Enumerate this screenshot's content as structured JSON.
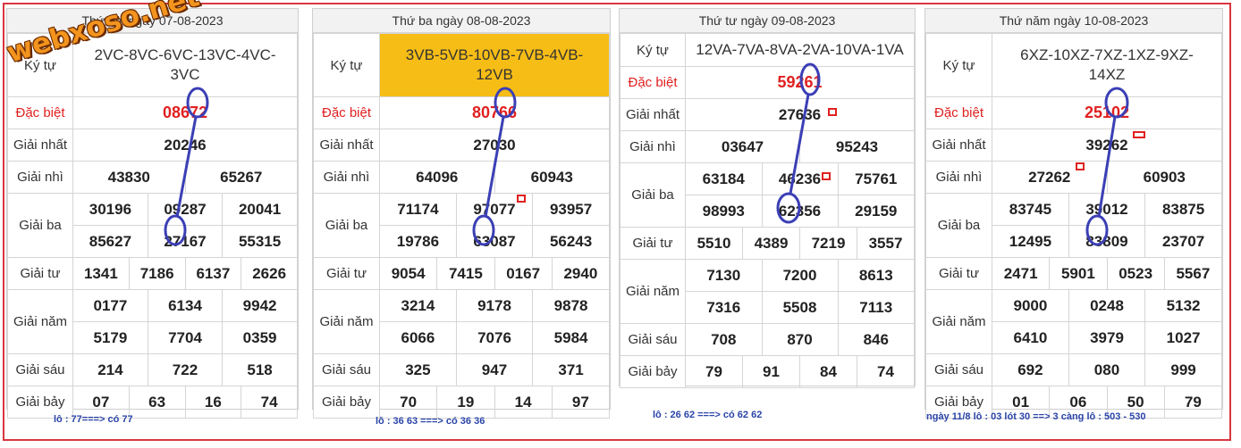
{
  "brand": "webxoso.net",
  "labels": {
    "ky_tu": "Ký tự",
    "dac_biet": "Đặc biệt",
    "nhat": "Giải nhất",
    "nhi": "Giải nhì",
    "ba": "Giải ba",
    "tu": "Giải tư",
    "nam": "Giải năm",
    "sau": "Giải sáu",
    "bay": "Giải bảy"
  },
  "colors": {
    "frame": "#d9363e",
    "special": "#e02020",
    "highlight": "#f6bd16",
    "annotation": "#2a44a8"
  },
  "panels": [
    {
      "title": "Thứ hai ngày 07-08-2023",
      "code": "2VC-8VC-6VC-13VC-4VC-3VC",
      "code_line1": "2VC-8VC-6VC-13VC-4VC-",
      "code_line2": "3VC",
      "db": "08672",
      "nhat": "20246",
      "nhi": [
        "43830",
        "65267"
      ],
      "ba": [
        "30196",
        "09287",
        "20041",
        "85627",
        "27167",
        "55315"
      ],
      "tu": [
        "1341",
        "7186",
        "6137",
        "2626"
      ],
      "nam": [
        "0177",
        "6134",
        "9942",
        "5179",
        "7704",
        "0359"
      ],
      "sau": [
        "214",
        "722",
        "518"
      ],
      "bay": [
        "07",
        "63",
        "16",
        "74"
      ],
      "note": "lô : 77===> có 77"
    },
    {
      "title": "Thứ ba ngày 08-08-2023",
      "code": "3VB-5VB-10VB-7VB-4VB-12VB",
      "code_line1": "3VB-5VB-10VB-7VB-4VB-",
      "code_line2": "12VB",
      "db": "80766",
      "nhat": "27030",
      "nhi": [
        "64096",
        "60943"
      ],
      "ba": [
        "71174",
        "97077",
        "93957",
        "19786",
        "63087",
        "56243"
      ],
      "tu": [
        "9054",
        "7415",
        "0167",
        "2940"
      ],
      "nam": [
        "3214",
        "9178",
        "9878",
        "6066",
        "7076",
        "5984"
      ],
      "sau": [
        "325",
        "947",
        "371"
      ],
      "bay": [
        "70",
        "19",
        "14",
        "97"
      ],
      "note": "lô : 36 63 ===> có 36 36"
    },
    {
      "title": "Thứ tư ngày 09-08-2023",
      "code": "12VA-7VA-8VA-2VA-10VA-1VA",
      "db": "59261",
      "nhat": "27636",
      "nhi": [
        "03647",
        "95243"
      ],
      "ba": [
        "63184",
        "46236",
        "75761",
        "98993",
        "62356",
        "29159"
      ],
      "tu": [
        "5510",
        "4389",
        "7219",
        "3557"
      ],
      "nam": [
        "7130",
        "7200",
        "8613",
        "7316",
        "5508",
        "7113"
      ],
      "sau": [
        "708",
        "870",
        "846"
      ],
      "bay": [
        "79",
        "91",
        "84",
        "74"
      ],
      "note": "lô : 26 62 ===> có 62 62"
    },
    {
      "title": "Thứ năm ngày 10-08-2023",
      "code": "6XZ-10XZ-7XZ-1XZ-9XZ-14XZ",
      "code_line1": "6XZ-10XZ-7XZ-1XZ-9XZ-",
      "code_line2": "14XZ",
      "db": "25102",
      "nhat": "39262",
      "nhi": [
        "27262",
        "60903"
      ],
      "ba": [
        "83745",
        "39012",
        "83875",
        "12495",
        "83809",
        "23707"
      ],
      "tu": [
        "2471",
        "5901",
        "0523",
        "5567"
      ],
      "nam": [
        "9000",
        "0248",
        "5132",
        "6410",
        "3979",
        "1027"
      ],
      "sau": [
        "692",
        "080",
        "999"
      ],
      "bay": [
        "01",
        "06",
        "50",
        "79"
      ],
      "note": "ngày 11/8 lô : 03 lót 30 ==> 3 càng lô : 503 - 530"
    }
  ]
}
